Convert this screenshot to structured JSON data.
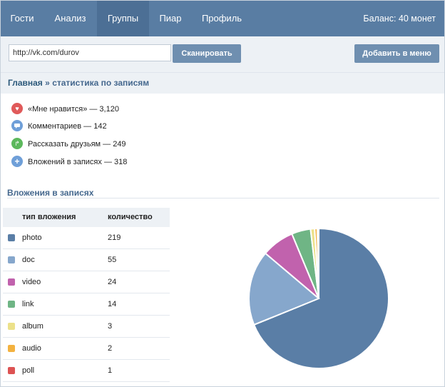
{
  "nav": {
    "tabs": [
      {
        "label": "Гости",
        "active": false
      },
      {
        "label": "Анализ",
        "active": false
      },
      {
        "label": "Группы",
        "active": true
      },
      {
        "label": "Пиар",
        "active": false
      },
      {
        "label": "Профиль",
        "active": false
      }
    ],
    "balance": "Баланс: 40 монет"
  },
  "toolbar": {
    "url_value": "http://vk.com/durov",
    "scan_label": "Сканировать",
    "add_menu_label": "Добавить в меню"
  },
  "breadcrumb": {
    "home": "Главная",
    "separator": "»",
    "current": "статистика по записям"
  },
  "stats": [
    {
      "icon": "heart-icon",
      "color": "#e05a5a",
      "text": "«Мне нравится» — 3,120"
    },
    {
      "icon": "comment-icon",
      "color": "#6f9fd8",
      "text": "Комментариев — 142"
    },
    {
      "icon": "share-icon",
      "color": "#5cb85c",
      "text": "Рассказать друзьям — 249"
    },
    {
      "icon": "plus-icon",
      "color": "#6f9fd8",
      "text": "Вложений в записях — 318"
    }
  ],
  "attachments": {
    "title": "Вложения в записях",
    "col_type": "тип вложения",
    "col_count": "количество"
  },
  "chart_data": {
    "type": "pie",
    "categories": [
      "photo",
      "doc",
      "video",
      "link",
      "album",
      "audio",
      "poll"
    ],
    "values": [
      219,
      55,
      24,
      14,
      3,
      2,
      1
    ],
    "colors": [
      "#5a7ea6",
      "#86a7cc",
      "#c162ad",
      "#6fb585",
      "#ece18a",
      "#f3b240",
      "#dd5353"
    ]
  }
}
